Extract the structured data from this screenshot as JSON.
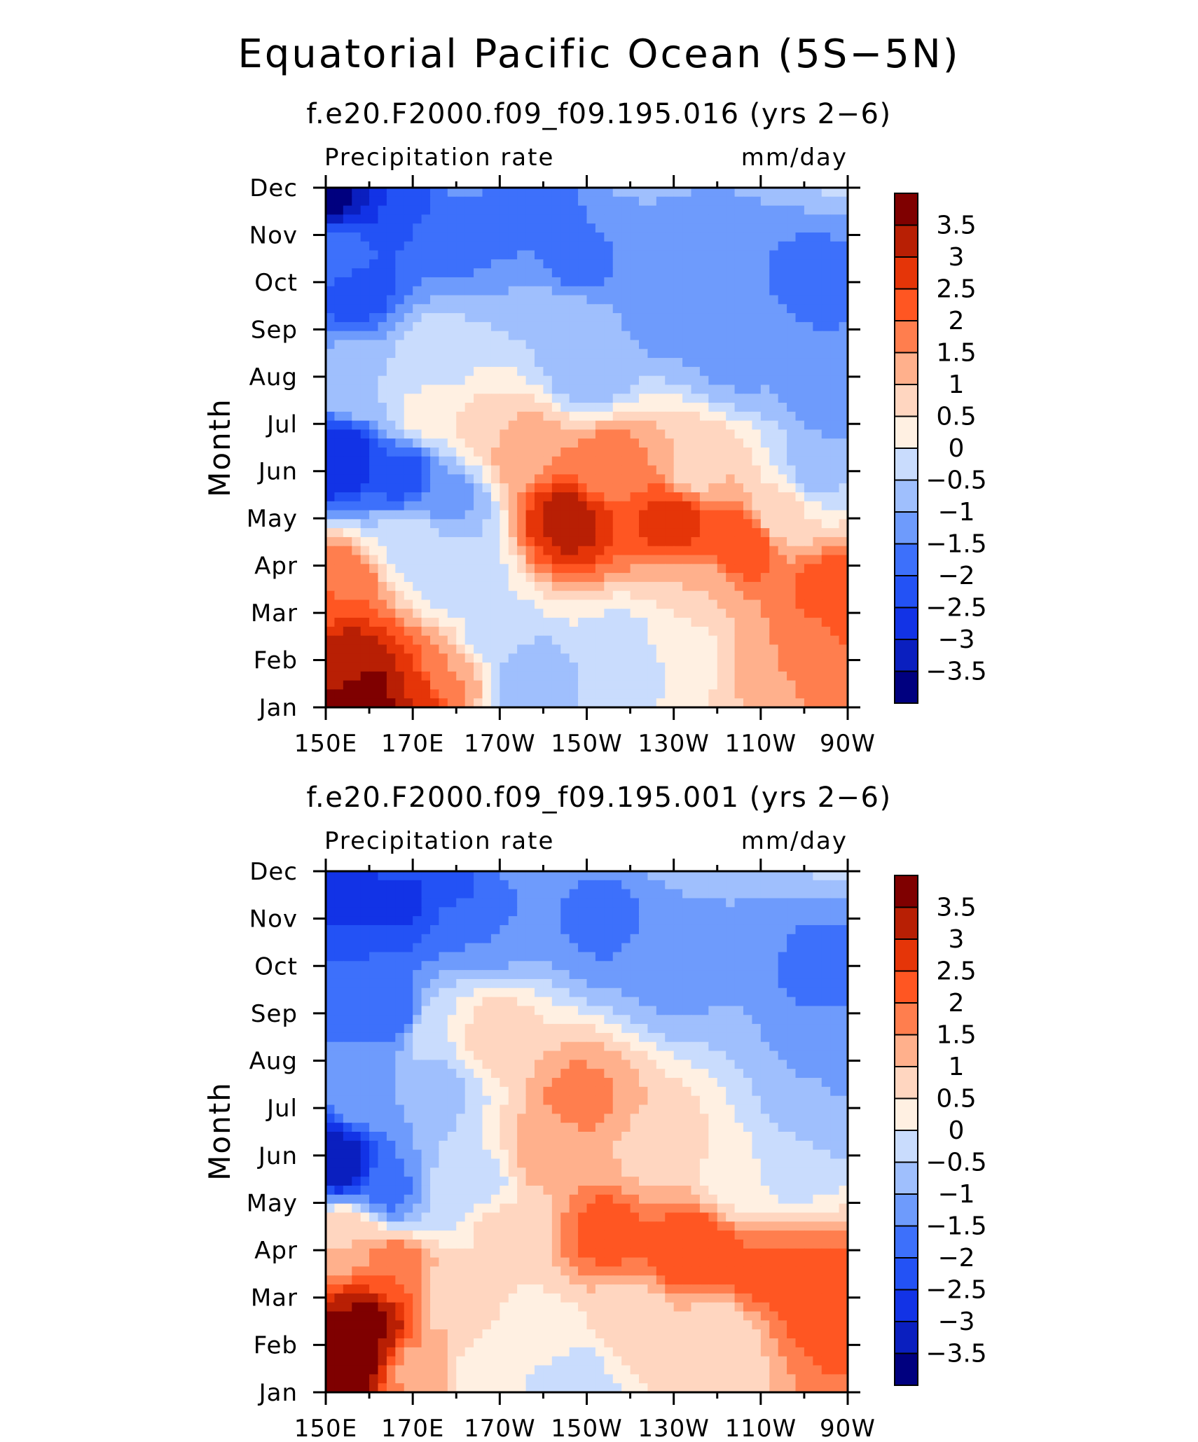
{
  "figure": {
    "title": "Equatorial Pacific Ocean (5S−5N)"
  },
  "chart_data": [
    {
      "type": "heatmap",
      "title": "f.e20.F2000.f09_f09.195.016 (yrs 2−6)",
      "left_label": "Precipitation rate",
      "right_label": "mm/day",
      "ylabel": "Month",
      "xlabel": "",
      "x_ticks": [
        "150E",
        "170E",
        "170W",
        "150W",
        "130W",
        "110W",
        "90W"
      ],
      "y_ticks": [
        "Jan",
        "Feb",
        "Mar",
        "Apr",
        "May",
        "Jun",
        "Jul",
        "Aug",
        "Sep",
        "Oct",
        "Nov",
        "Dec"
      ],
      "anchors": [
        {
          "lon": 153,
          "month": 11.0,
          "v": -3.8
        },
        {
          "lon": 160,
          "month": 11.0,
          "v": -3.0
        },
        {
          "lon": 167,
          "month": 10.8,
          "v": -2.2
        },
        {
          "lon": 157,
          "month": 8.9,
          "v": -2.2
        },
        {
          "lon": 153,
          "month": 9.5,
          "v": -1.7
        },
        {
          "lon": 180,
          "month": 10.0,
          "v": -1.6
        },
        {
          "lon": 195,
          "month": 10.9,
          "v": -2.0
        },
        {
          "lon": 208,
          "month": 9.3,
          "v": -1.6
        },
        {
          "lon": 230,
          "month": 8.6,
          "v": -1.5
        },
        {
          "lon": 205,
          "month": 8.2,
          "v": -0.5
        },
        {
          "lon": 210,
          "month": 7.2,
          "v": -0.8
        },
        {
          "lon": 245,
          "month": 7.5,
          "v": -1.1
        },
        {
          "lon": 262,
          "month": 9.0,
          "v": -1.6
        },
        {
          "lon": 268,
          "month": 6.5,
          "v": -1.5
        },
        {
          "lon": 262,
          "month": 5.0,
          "v": -0.6
        },
        {
          "lon": 153,
          "month": 5.3,
          "v": -3.0
        },
        {
          "lon": 168,
          "month": 4.9,
          "v": -2.2
        },
        {
          "lon": 157,
          "month": 6.8,
          "v": -0.5
        },
        {
          "lon": 175,
          "month": 7.5,
          "v": -0.3
        },
        {
          "lon": 173,
          "month": 6.2,
          "v": 0.1
        },
        {
          "lon": 178,
          "month": 4.4,
          "v": -1.1
        },
        {
          "lon": 180,
          "month": 2.8,
          "v": -0.4
        },
        {
          "lon": 170,
          "month": 3.5,
          "v": -0.1
        },
        {
          "lon": 188,
          "month": 1.5,
          "v": -0.2
        },
        {
          "lon": 196,
          "month": 0.6,
          "v": -0.9
        },
        {
          "lon": 220,
          "month": 1.2,
          "v": -0.3
        },
        {
          "lon": 185,
          "month": 6.0,
          "v": 0.6
        },
        {
          "lon": 195,
          "month": 5.5,
          "v": 1.4
        },
        {
          "lon": 206,
          "month": 4.0,
          "v": 3.2
        },
        {
          "lon": 230,
          "month": 4.0,
          "v": 2.7
        },
        {
          "lon": 245,
          "month": 3.5,
          "v": 2.4
        },
        {
          "lon": 215,
          "month": 5.0,
          "v": 1.8
        },
        {
          "lon": 235,
          "month": 5.0,
          "v": 0.9
        },
        {
          "lon": 255,
          "month": 4.2,
          "v": 0.6
        },
        {
          "lon": 268,
          "month": 2.3,
          "v": 2.5
        },
        {
          "lon": 258,
          "month": 1.3,
          "v": 1.5
        },
        {
          "lon": 235,
          "month": 2.4,
          "v": 1.0
        },
        {
          "lon": 230,
          "month": 1.5,
          "v": 0.2
        },
        {
          "lon": 153,
          "month": 2.6,
          "v": 2.0
        },
        {
          "lon": 155,
          "month": 1.0,
          "v": 3.2
        },
        {
          "lon": 160,
          "month": 0.2,
          "v": 4.0
        },
        {
          "lon": 170,
          "month": 0.3,
          "v": 3.0
        },
        {
          "lon": 178,
          "month": 0.7,
          "v": 1.5
        },
        {
          "lon": 165,
          "month": 11.8,
          "v": 1.2
        },
        {
          "lon": 185,
          "month": 11.9,
          "v": -0.2
        },
        {
          "lon": 220,
          "month": 11.8,
          "v": -0.9
        },
        {
          "lon": 268,
          "month": 11.9,
          "v": -0.4
        }
      ]
    },
    {
      "type": "heatmap",
      "title": "f.e20.F2000.f09_f09.195.001 (yrs 2−6)",
      "left_label": "Precipitation rate",
      "right_label": "mm/day",
      "ylabel": "Month",
      "xlabel": "",
      "x_ticks": [
        "150E",
        "170E",
        "170W",
        "150W",
        "130W",
        "110W",
        "90W"
      ],
      "y_ticks": [
        "Jan",
        "Feb",
        "Mar",
        "Apr",
        "May",
        "Jun",
        "Jul",
        "Aug",
        "Sep",
        "Oct",
        "Nov",
        "Dec"
      ],
      "anchors": [
        {
          "lon": 157,
          "month": 10.6,
          "v": -3.0
        },
        {
          "lon": 168,
          "month": 10.5,
          "v": -2.6
        },
        {
          "lon": 155,
          "month": 9.0,
          "v": -2.0
        },
        {
          "lon": 165,
          "month": 8.0,
          "v": -1.8
        },
        {
          "lon": 180,
          "month": 10.7,
          "v": -2.1
        },
        {
          "lon": 185,
          "month": 10.0,
          "v": -1.5
        },
        {
          "lon": 205,
          "month": 11.0,
          "v": -1.5
        },
        {
          "lon": 215,
          "month": 10.0,
          "v": -1.6
        },
        {
          "lon": 230,
          "month": 9.0,
          "v": -1.1
        },
        {
          "lon": 240,
          "month": 10.8,
          "v": -1.0
        },
        {
          "lon": 265,
          "month": 9.0,
          "v": -1.6
        },
        {
          "lon": 268,
          "month": 7.0,
          "v": -1.4
        },
        {
          "lon": 262,
          "month": 6.0,
          "v": -0.8
        },
        {
          "lon": 255,
          "month": 4.8,
          "v": -0.3
        },
        {
          "lon": 154,
          "month": 4.9,
          "v": -3.2
        },
        {
          "lon": 165,
          "month": 4.3,
          "v": -1.6
        },
        {
          "lon": 160,
          "month": 6.2,
          "v": -1.1
        },
        {
          "lon": 175,
          "month": 6.5,
          "v": -0.7
        },
        {
          "lon": 178,
          "month": 4.2,
          "v": -0.4
        },
        {
          "lon": 185,
          "month": 4.4,
          "v": -0.2
        },
        {
          "lon": 176,
          "month": 7.6,
          "v": 0.0
        },
        {
          "lon": 188,
          "month": 7.5,
          "v": 0.8
        },
        {
          "lon": 190,
          "month": 3.5,
          "v": 0.6
        },
        {
          "lon": 200,
          "month": 5.0,
          "v": 1.2
        },
        {
          "lon": 208,
          "month": 6.2,
          "v": 1.6
        },
        {
          "lon": 215,
          "month": 3.4,
          "v": 2.2
        },
        {
          "lon": 235,
          "month": 3.0,
          "v": 2.5
        },
        {
          "lon": 250,
          "month": 2.5,
          "v": 2.1
        },
        {
          "lon": 265,
          "month": 2.0,
          "v": 2.4
        },
        {
          "lon": 225,
          "month": 5.0,
          "v": 0.9
        },
        {
          "lon": 245,
          "month": 4.5,
          "v": 0.3
        },
        {
          "lon": 240,
          "month": 1.2,
          "v": 0.6
        },
        {
          "lon": 220,
          "month": 1.5,
          "v": 0.7
        },
        {
          "lon": 200,
          "month": 1.0,
          "v": 0.2
        },
        {
          "lon": 205,
          "month": 0.2,
          "v": -0.5
        },
        {
          "lon": 185,
          "month": 0.3,
          "v": 0.3
        },
        {
          "lon": 172,
          "month": 0.5,
          "v": 1.4
        },
        {
          "lon": 155,
          "month": 0.8,
          "v": 4.0
        },
        {
          "lon": 160,
          "month": 1.5,
          "v": 3.6
        },
        {
          "lon": 165,
          "month": 2.5,
          "v": 2.0
        },
        {
          "lon": 155,
          "month": 3.2,
          "v": 1.0
        },
        {
          "lon": 180,
          "month": 2.0,
          "v": 0.6
        },
        {
          "lon": 165,
          "month": 11.8,
          "v": 1.2
        },
        {
          "lon": 185,
          "month": 11.9,
          "v": -0.3
        },
        {
          "lon": 230,
          "month": 11.7,
          "v": -0.8
        },
        {
          "lon": 268,
          "month": 11.9,
          "v": -0.3
        }
      ]
    }
  ],
  "colorbar": {
    "labels": [
      "3.5",
      "3",
      "2.5",
      "2",
      "1.5",
      "1",
      "0.5",
      "0",
      "−0.5",
      "−1",
      "−1.5",
      "−2",
      "−2.5",
      "−3",
      "−3.5"
    ],
    "levels": [
      -3.5,
      -3,
      -2.5,
      -2,
      -1.5,
      -1,
      -0.5,
      0,
      0.5,
      1,
      1.5,
      2,
      2.5,
      3,
      3.5
    ],
    "colors_low_to_high": [
      "#00007f",
      "#0a1fbf",
      "#1233e6",
      "#2352f5",
      "#3d70fb",
      "#6e9bfc",
      "#9fbffd",
      "#c9dcfd",
      "#fff0e2",
      "#ffd6c0",
      "#ffb08c",
      "#ff7e4e",
      "#ff5622",
      "#e53508",
      "#b81f04",
      "#7f0000"
    ]
  }
}
